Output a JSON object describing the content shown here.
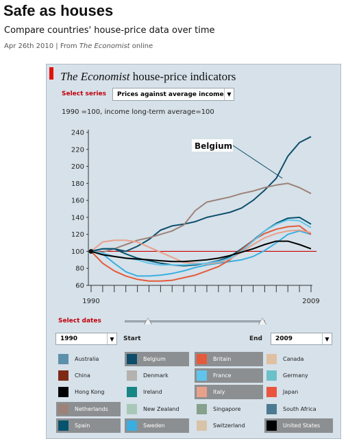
{
  "article": {
    "title": "Safe as houses",
    "subtitle": "Compare countries' house-price data over time",
    "date": "Apr 26th 2010",
    "separator": " | From ",
    "source": "The Economist",
    "source_suffix": " online"
  },
  "widget": {
    "title_italic": "The Economist",
    "title_rest": " house-price indicators",
    "select_series_label": "Select series",
    "series_selected": "Prices against average income",
    "note": "1990 =100, income long-term average=100",
    "select_dates_label": "Select dates",
    "start_label": "Start",
    "end_label": "End",
    "start_value": "1990",
    "end_value": "2009",
    "annotation": "Belgium",
    "accent_color": "#e3120b"
  },
  "chart_data": {
    "type": "line",
    "x": [
      1990,
      1991,
      1992,
      1993,
      1994,
      1995,
      1996,
      1997,
      1998,
      1999,
      2000,
      2001,
      2002,
      2003,
      2004,
      2005,
      2006,
      2007,
      2008,
      2009
    ],
    "xtick_labels": [
      "1990",
      "2009"
    ],
    "yticks": [
      60,
      80,
      100,
      120,
      140,
      160,
      180,
      200,
      220,
      240
    ],
    "ylim": [
      60,
      240
    ],
    "reference_line": 100,
    "annotation": {
      "series": "Belgium",
      "text": "Belgium"
    },
    "series": [
      {
        "name": "Belgium",
        "color": "#0d4d6a",
        "values": [
          100,
          103,
          103,
          100,
          106,
          114,
          125,
          130,
          132,
          135,
          140,
          143,
          146,
          151,
          160,
          172,
          186,
          212,
          228,
          235
        ]
      },
      {
        "name": "Netherlands",
        "color": "#9c8278",
        "values": [
          100,
          99,
          103,
          108,
          113,
          116,
          120,
          124,
          131,
          148,
          158,
          161,
          164,
          168,
          171,
          175,
          178,
          180,
          175,
          168
        ]
      },
      {
        "name": "Spain",
        "color": "#07536e",
        "values": [
          100,
          103,
          103,
          97,
          92,
          89,
          86,
          84,
          83,
          84,
          86,
          89,
          94,
          103,
          113,
          124,
          133,
          139,
          140,
          132
        ]
      },
      {
        "name": "Sweden",
        "color": "#3aaee0",
        "values": [
          100,
          97,
          86,
          76,
          71,
          71,
          72,
          74,
          77,
          81,
          84,
          86,
          88,
          90,
          94,
          101,
          110,
          120,
          124,
          120
        ]
      },
      {
        "name": "Britain",
        "color": "#e45a3a",
        "values": [
          100,
          86,
          77,
          71,
          67,
          65,
          65,
          66,
          69,
          72,
          77,
          82,
          90,
          102,
          113,
          121,
          126,
          129,
          130,
          120
        ]
      },
      {
        "name": "Italy",
        "color": "#e8a08a",
        "values": [
          100,
          111,
          113,
          113,
          111,
          105,
          99,
          93,
          87,
          86,
          85,
          87,
          91,
          99,
          108,
          116,
          121,
          124,
          125,
          122
        ]
      },
      {
        "name": "France",
        "color": "#60c4ec",
        "values": [
          100,
          98,
          94,
          92,
          90,
          86,
          84,
          84,
          84,
          85,
          86,
          88,
          92,
          100,
          112,
          124,
          132,
          137,
          136,
          128
        ]
      },
      {
        "name": "United States",
        "color": "#000000",
        "values": [
          100,
          96,
          94,
          92,
          91,
          90,
          89,
          88,
          88,
          89,
          90,
          92,
          95,
          99,
          103,
          108,
          112,
          112,
          108,
          103
        ]
      }
    ]
  },
  "legend": [
    {
      "label": "Australia",
      "color": "#5d90ab",
      "on": false
    },
    {
      "label": "Belgium",
      "color": "#0d4d6a",
      "on": true
    },
    {
      "label": "Britain",
      "color": "#e45a3a",
      "on": true
    },
    {
      "label": "Canada",
      "color": "#dfc0a2",
      "on": false
    },
    {
      "label": "China",
      "color": "#7e2a17",
      "on": false
    },
    {
      "label": "Denmark",
      "color": "#b4b1ae",
      "on": false
    },
    {
      "label": "France",
      "color": "#60c4ec",
      "on": true
    },
    {
      "label": "Germany",
      "color": "#6cc0c8",
      "on": false
    },
    {
      "label": "Hong Kong",
      "color": "#000000",
      "on": false
    },
    {
      "label": "Ireland",
      "color": "#178684",
      "on": false
    },
    {
      "label": "Italy",
      "color": "#e8a08a",
      "on": true
    },
    {
      "label": "Japan",
      "color": "#e9553f",
      "on": false
    },
    {
      "label": "Netherlands",
      "color": "#9c8278",
      "on": true
    },
    {
      "label": "New Zealand",
      "color": "#a7c8b7",
      "on": false
    },
    {
      "label": "Singapore",
      "color": "#86a18d",
      "on": false
    },
    {
      "label": "South Africa",
      "color": "#4c7a92",
      "on": false
    },
    {
      "label": "Spain",
      "color": "#07536e",
      "on": true
    },
    {
      "label": "Sweden",
      "color": "#3aaee0",
      "on": true
    },
    {
      "label": "Switzerland",
      "color": "#d8c3a8",
      "on": false
    },
    {
      "label": "United States",
      "color": "#000000",
      "on": true
    }
  ]
}
